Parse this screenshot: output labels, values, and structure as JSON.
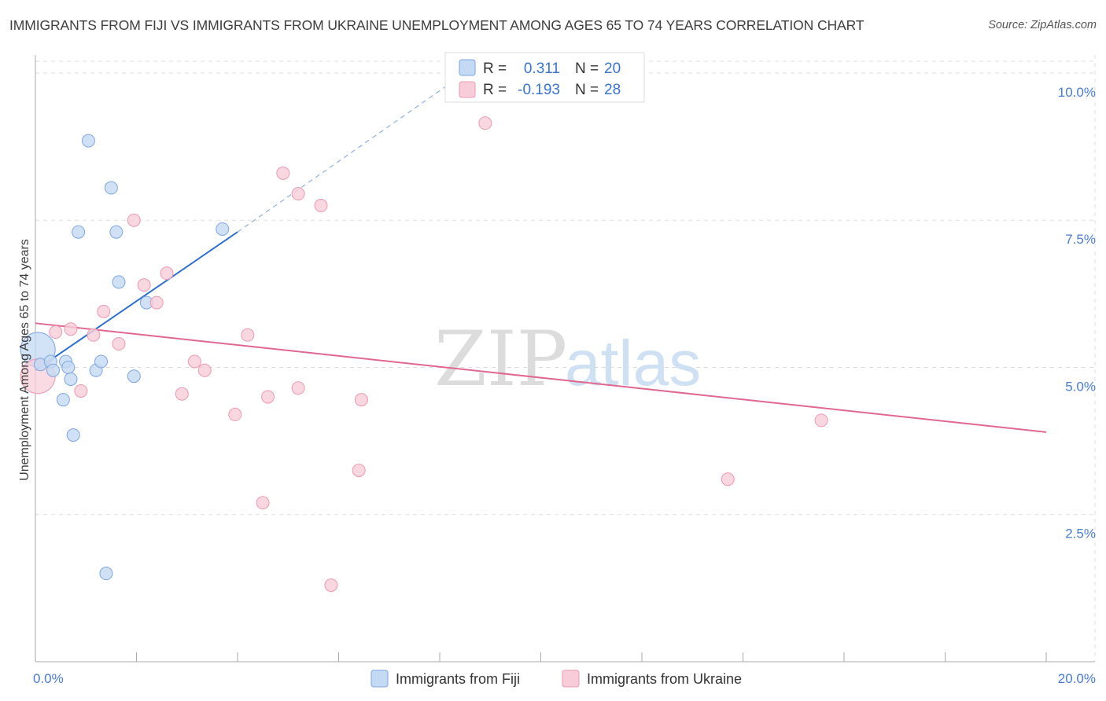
{
  "header": {
    "title": "IMMIGRANTS FROM FIJI VS IMMIGRANTS FROM UKRAINE UNEMPLOYMENT AMONG AGES 65 TO 74 YEARS CORRELATION CHART",
    "source": "Source: ZipAtlas.com"
  },
  "watermark": {
    "zip": "ZIP",
    "atlas": "atlas"
  },
  "stats": {
    "fiji": {
      "r_label": "R =",
      "r_value": "0.311",
      "n_label": "N =",
      "n_value": "20"
    },
    "ukraine": {
      "r_label": "R =",
      "r_value": "-0.193",
      "n_label": "N =",
      "n_value": "28"
    }
  },
  "colors": {
    "fiji_fill": "#c4d9f4",
    "fiji_stroke": "#7ea6de",
    "fiji_line": "#2f6fc8",
    "ukraine_fill": "#f8cdd9",
    "ukraine_stroke": "#e99ab2",
    "ukraine_line": "#e0688f",
    "tick_text": "#4a7cc9",
    "grid": "#dddddd"
  },
  "chart_data": {
    "type": "scatter",
    "title": "IMMIGRANTS FROM FIJI VS IMMIGRANTS FROM UKRAINE UNEMPLOYMENT AMONG AGES 65 TO 74 YEARS CORRELATION CHART",
    "xlabel": "",
    "ylabel": "Unemployment Among Ages 65 to 74 years",
    "xlim": [
      0,
      20
    ],
    "ylim": [
      0,
      10.2
    ],
    "x_tick_labels": [
      {
        "value": 0,
        "label": "0.0%"
      },
      {
        "value": 20,
        "label": "20.0%"
      }
    ],
    "x_minor_ticks": [
      0,
      2,
      4,
      6,
      8,
      10,
      12,
      14,
      16,
      18,
      20
    ],
    "y_ticks": [
      {
        "value": 2.5,
        "label": "2.5%"
      },
      {
        "value": 5.0,
        "label": "5.0%"
      },
      {
        "value": 7.5,
        "label": "7.5%"
      },
      {
        "value": 10.0,
        "label": "10.0%"
      }
    ],
    "grid": true,
    "legend_position": "bottom-center",
    "series": [
      {
        "name": "Immigrants from Fiji",
        "color": "#7ea6de",
        "r": 0.311,
        "n": 20,
        "points": [
          {
            "x": 0.05,
            "y": 5.3,
            "big": true
          },
          {
            "x": 0.1,
            "y": 5.05
          },
          {
            "x": 0.3,
            "y": 5.1
          },
          {
            "x": 0.35,
            "y": 4.95
          },
          {
            "x": 0.6,
            "y": 5.1
          },
          {
            "x": 0.55,
            "y": 4.45
          },
          {
            "x": 0.65,
            "y": 5.0
          },
          {
            "x": 0.7,
            "y": 4.8
          },
          {
            "x": 0.75,
            "y": 3.85
          },
          {
            "x": 0.85,
            "y": 7.3
          },
          {
            "x": 1.05,
            "y": 8.85
          },
          {
            "x": 1.2,
            "y": 4.95
          },
          {
            "x": 1.3,
            "y": 5.1
          },
          {
            "x": 1.5,
            "y": 8.05
          },
          {
            "x": 1.6,
            "y": 7.3
          },
          {
            "x": 1.65,
            "y": 6.45
          },
          {
            "x": 1.4,
            "y": 1.5
          },
          {
            "x": 1.95,
            "y": 4.85
          },
          {
            "x": 2.2,
            "y": 6.1
          },
          {
            "x": 3.7,
            "y": 7.35
          }
        ],
        "trend": {
          "x0": 0.0,
          "y0": 4.95,
          "x1": 4.0,
          "y1": 7.3,
          "dash_to_x": 8.5,
          "dash_to_y": 10.0
        }
      },
      {
        "name": "Immigrants from Ukraine",
        "color": "#e99ab2",
        "r": -0.193,
        "n": 28,
        "points": [
          {
            "x": 0.05,
            "y": 4.85,
            "big": true
          },
          {
            "x": 0.4,
            "y": 5.6
          },
          {
            "x": 0.7,
            "y": 5.65
          },
          {
            "x": 0.9,
            "y": 4.6
          },
          {
            "x": 1.15,
            "y": 5.55
          },
          {
            "x": 1.35,
            "y": 5.95
          },
          {
            "x": 1.65,
            "y": 5.4
          },
          {
            "x": 1.95,
            "y": 7.5
          },
          {
            "x": 2.15,
            "y": 6.4
          },
          {
            "x": 2.4,
            "y": 6.1
          },
          {
            "x": 2.6,
            "y": 6.6
          },
          {
            "x": 2.9,
            "y": 4.55
          },
          {
            "x": 3.15,
            "y": 5.1
          },
          {
            "x": 3.35,
            "y": 4.95
          },
          {
            "x": 3.95,
            "y": 4.2
          },
          {
            "x": 4.2,
            "y": 5.55
          },
          {
            "x": 4.5,
            "y": 2.7
          },
          {
            "x": 4.6,
            "y": 4.5
          },
          {
            "x": 4.9,
            "y": 8.3
          },
          {
            "x": 5.2,
            "y": 7.95
          },
          {
            "x": 5.2,
            "y": 4.65
          },
          {
            "x": 5.65,
            "y": 7.75
          },
          {
            "x": 5.85,
            "y": 1.3
          },
          {
            "x": 6.4,
            "y": 3.25
          },
          {
            "x": 6.45,
            "y": 4.45
          },
          {
            "x": 8.9,
            "y": 9.15
          },
          {
            "x": 13.7,
            "y": 3.1
          },
          {
            "x": 15.55,
            "y": 4.1
          }
        ],
        "trend": {
          "x0": 0.0,
          "y0": 5.75,
          "x1": 20.0,
          "y1": 3.9
        }
      }
    ]
  }
}
